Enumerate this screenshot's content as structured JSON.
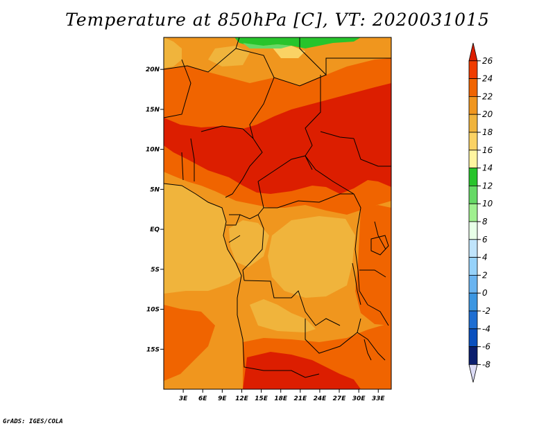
{
  "title": "Temperature at 850hPa [C], VT: 2020031015",
  "footer": "GrADS: IGES/COLA",
  "map": {
    "region": "Central Africa",
    "lon_range": [
      0,
      35
    ],
    "lat_range": [
      -20,
      24
    ],
    "lat_tick_labels": [
      {
        "label": "20N",
        "lat": 20
      },
      {
        "label": "15N",
        "lat": 15
      },
      {
        "label": "10N",
        "lat": 10
      },
      {
        "label": "5N",
        "lat": 5
      },
      {
        "label": "EQ",
        "lat": 0
      },
      {
        "label": "5S",
        "lat": -5
      },
      {
        "label": "10S",
        "lat": -10
      },
      {
        "label": "15S",
        "lat": -15
      }
    ],
    "lon_tick_labels": [
      {
        "label": "3E",
        "lon": 3
      },
      {
        "label": "6E",
        "lon": 6
      },
      {
        "label": "9E",
        "lon": 9
      },
      {
        "label": "12E",
        "lon": 12
      },
      {
        "label": "15E",
        "lon": 15
      },
      {
        "label": "18E",
        "lon": 18
      },
      {
        "label": "21E",
        "lon": 21
      },
      {
        "label": "24E",
        "lon": 24
      },
      {
        "label": "27E",
        "lon": 27
      },
      {
        "label": "30E",
        "lon": 30
      },
      {
        "label": "33E",
        "lon": 33
      }
    ]
  },
  "colorbar": {
    "labels": [
      "26",
      "24",
      "22",
      "20",
      "18",
      "16",
      "14",
      "12",
      "10",
      "8",
      "6",
      "4",
      "2",
      "0",
      "-2",
      "-4",
      "-6",
      "-8"
    ],
    "colors": [
      "#dc1e00",
      "#f03c00",
      "#f06400",
      "#f0961e",
      "#f0b43c",
      "#fad264",
      "#fff5a0",
      "#27c42b",
      "#66d966",
      "#a0f090",
      "#e8ffe8",
      "#c0e4fb",
      "#96d2fa",
      "#6ab4f0",
      "#3c96e1",
      "#1e6ed2",
      "#0a50be",
      "#0a1e6e",
      "#dcdcf6"
    ]
  }
}
